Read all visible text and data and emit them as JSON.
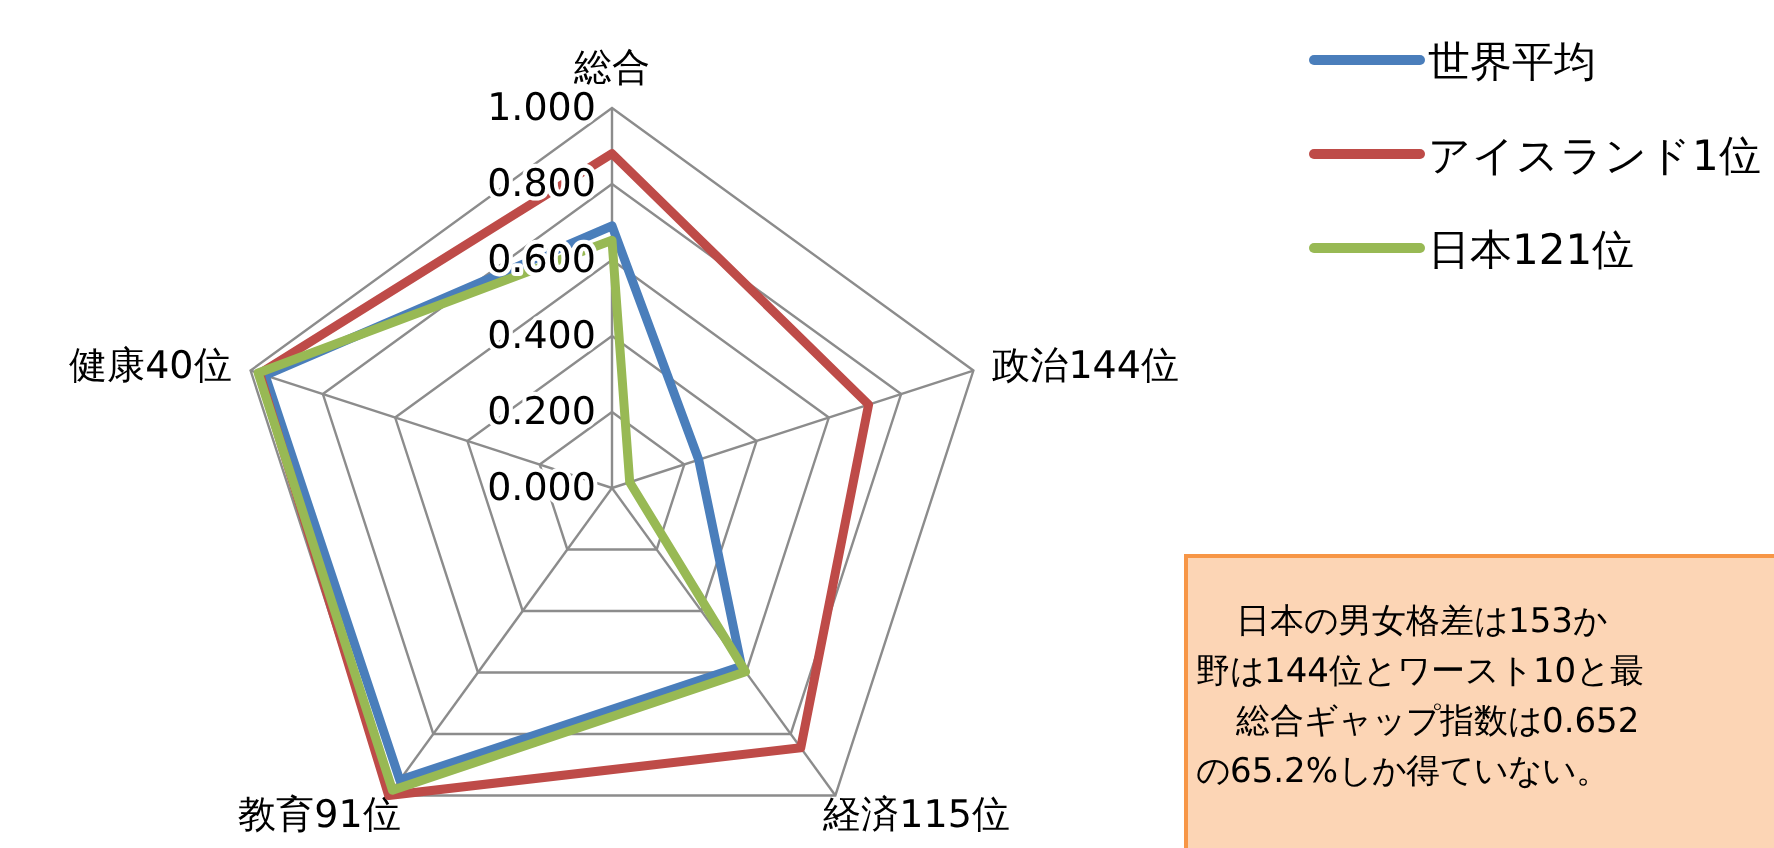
{
  "chart_data": {
    "type": "radar",
    "categories": [
      "総合",
      "政治144位",
      "経済115位",
      "教育91位",
      "健康40位"
    ],
    "series": [
      {
        "name": "世界平均",
        "color": "#4a7ebb",
        "values": [
          0.69,
          0.24,
          0.58,
          0.95,
          0.96
        ]
      },
      {
        "name": "アイスランド1位",
        "color": "#be4b48",
        "values": [
          0.88,
          0.71,
          0.845,
          1.0,
          0.975
        ]
      },
      {
        "name": "日本121位",
        "color": "#98b954",
        "values": [
          0.652,
          0.049,
          0.598,
          0.983,
          0.979
        ]
      }
    ],
    "ylim": [
      0,
      1
    ],
    "yticks": [
      {
        "value": 0,
        "label": "0.000"
      },
      {
        "value": 0.2,
        "label": "0.200"
      },
      {
        "value": 0.4,
        "label": "0.400"
      },
      {
        "value": 0.6,
        "label": "0.600"
      },
      {
        "value": 0.8,
        "label": "0.800"
      },
      {
        "value": 1,
        "label": "1.000"
      }
    ],
    "grid": true,
    "legend": "top right",
    "annotations": [
      "日本の男女格差は153か",
      "野は144位とワースト10と最",
      "総合ギャップ指数は0.652",
      "の65.2%しか得ていない。"
    ]
  }
}
